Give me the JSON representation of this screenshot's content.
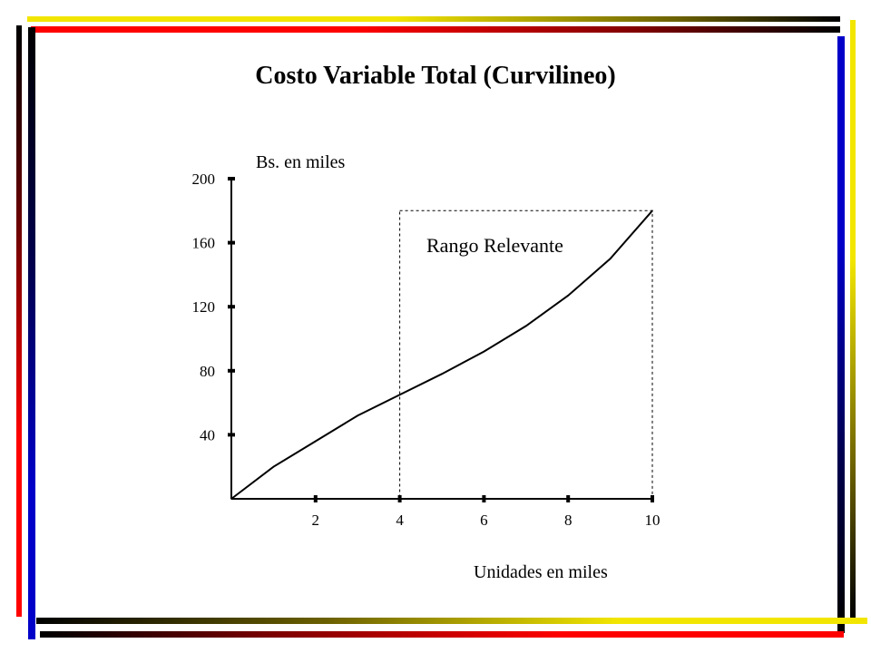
{
  "frame": {
    "colors": {
      "yellow": "#f2e600",
      "red": "#ff0000",
      "blue": "#0000c8",
      "black": "#000000",
      "dark_red": "#1a0000"
    }
  },
  "chart_data": {
    "type": "line",
    "title": "Costo Variable Total (Curvilineo)",
    "ylabel": "Bs. en miles",
    "xlabel": "Unidades en miles",
    "xlim": [
      0,
      10
    ],
    "ylim": [
      0,
      200
    ],
    "x_ticks": [
      2,
      4,
      6,
      8,
      10
    ],
    "y_ticks": [
      40,
      80,
      120,
      160,
      200
    ],
    "x": [
      0,
      1,
      2,
      3,
      4,
      5,
      6,
      7,
      8,
      9,
      10
    ],
    "series": [
      {
        "values": [
          0,
          20,
          36,
          52,
          65,
          78,
          92,
          108,
          127,
          150,
          180
        ]
      }
    ],
    "line_color": "#000000",
    "grid": false,
    "annotation": {
      "label": "Rango Relevante",
      "x_range": [
        4,
        10
      ],
      "y_top": 180,
      "style": "dashed-box"
    }
  }
}
